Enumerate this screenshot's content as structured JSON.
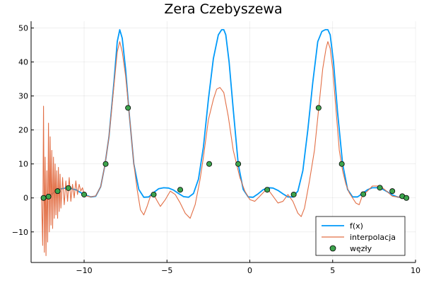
{
  "chart_data": {
    "type": "line",
    "title": "Zera Czebyszewa",
    "xlabel": "",
    "ylabel": "",
    "xlim": [
      -13.2,
      10.0
    ],
    "ylim": [
      -19,
      52
    ],
    "grid": true,
    "legend_position": "bottom-right",
    "x_ticks": [
      -10,
      -5,
      0,
      5,
      10
    ],
    "x_tick_labels": [
      "−10",
      "−5",
      "0",
      "5",
      "10"
    ],
    "y_ticks": [
      -10,
      0,
      10,
      20,
      30,
      40,
      50
    ],
    "y_tick_labels": [
      "−10",
      "0",
      "10",
      "20",
      "30",
      "40",
      "50"
    ],
    "series": [
      {
        "name": "f(x)",
        "kind": "line",
        "color": "#009af9",
        "x": [
          -12.57,
          -12.0,
          -11.5,
          -11.0,
          -10.5,
          -10.0,
          -9.6,
          -9.3,
          -9.0,
          -8.75,
          -8.5,
          -8.2,
          -8.0,
          -7.85,
          -7.7,
          -7.5,
          -7.3,
          -7.0,
          -6.7,
          -6.4,
          -6.1,
          -5.8,
          -5.5,
          -5.2,
          -4.9,
          -4.6,
          -4.3,
          -4.0,
          -3.7,
          -3.4,
          -3.1,
          -2.8,
          -2.5,
          -2.2,
          -1.9,
          -1.7,
          -1.57,
          -1.45,
          -1.25,
          -1.0,
          -0.7,
          -0.4,
          -0.1,
          0.2,
          0.5,
          0.8,
          1.1,
          1.4,
          1.7,
          2.0,
          2.3,
          2.6,
          2.9,
          3.2,
          3.5,
          3.8,
          4.1,
          4.35,
          4.55,
          4.71,
          4.85,
          5.05,
          5.3,
          5.6,
          5.9,
          6.2,
          6.5,
          6.8,
          7.1,
          7.4,
          7.7,
          8.0,
          8.3,
          8.6,
          8.9,
          9.2,
          9.42
        ],
        "y": [
          0.1,
          1.0,
          2.6,
          3.0,
          2.4,
          1.0,
          0.3,
          0.5,
          3.3,
          9.5,
          18,
          34,
          46,
          49.5,
          47,
          38,
          26,
          10,
          2.5,
          0.2,
          0.3,
          1.6,
          2.7,
          3.0,
          2.9,
          2.3,
          1.3,
          0.4,
          0.2,
          1.3,
          5.5,
          15,
          29,
          41,
          48,
          49.5,
          49.5,
          48,
          40,
          26,
          10,
          2.5,
          0.3,
          0.2,
          1.2,
          2.4,
          3.0,
          2.9,
          2.2,
          1.2,
          0.3,
          0.3,
          2.0,
          8.0,
          20,
          34,
          46,
          49.0,
          49.5,
          49.5,
          48,
          40,
          25,
          10,
          2.5,
          0.3,
          0.3,
          1.3,
          2.4,
          3.0,
          3.0,
          2.6,
          1.8,
          0.9,
          0.3,
          0.1,
          0.1
        ]
      },
      {
        "name": "interpolacja",
        "kind": "line",
        "color": "#e26f46",
        "x": [
          -12.57,
          -12.5,
          -12.45,
          -12.4,
          -12.35,
          -12.3,
          -12.25,
          -12.2,
          -12.15,
          -12.1,
          -12.05,
          -12.0,
          -11.95,
          -11.9,
          -11.85,
          -11.8,
          -11.75,
          -11.7,
          -11.65,
          -11.6,
          -11.55,
          -11.5,
          -11.45,
          -11.4,
          -11.3,
          -11.2,
          -11.1,
          -11.0,
          -10.9,
          -10.8,
          -10.7,
          -10.6,
          -10.5,
          -10.4,
          -10.3,
          -10.2,
          -10.1,
          -10.0,
          -9.8,
          -9.6,
          -9.3,
          -9.0,
          -8.75,
          -8.5,
          -8.2,
          -8.0,
          -7.85,
          -7.7,
          -7.5,
          -7.3,
          -7.0,
          -6.8,
          -6.6,
          -6.4,
          -6.2,
          -6.0,
          -5.8,
          -5.6,
          -5.4,
          -5.1,
          -4.8,
          -4.5,
          -4.2,
          -3.9,
          -3.6,
          -3.3,
          -3.0,
          -2.8,
          -2.5,
          -2.2,
          -2.0,
          -1.8,
          -1.57,
          -1.3,
          -1.0,
          -0.8,
          -0.6,
          -0.3,
          0.0,
          0.3,
          0.6,
          0.9,
          1.1,
          1.4,
          1.7,
          2.0,
          2.3,
          2.6,
          2.9,
          3.1,
          3.3,
          3.6,
          3.9,
          4.15,
          4.4,
          4.6,
          4.71,
          4.85,
          5.0,
          5.2,
          5.4,
          5.6,
          5.8,
          6.0,
          6.2,
          6.4,
          6.6,
          6.8,
          7.1,
          7.4,
          7.7,
          8.0,
          8.3,
          8.6,
          8.9,
          9.2,
          9.42
        ],
        "y": [
          0.0,
          -14,
          27,
          -16,
          12,
          -17,
          8,
          -13,
          22,
          -10,
          18,
          -8,
          14,
          -9,
          12,
          -6,
          10,
          -5,
          8,
          -6,
          9,
          -4,
          7,
          -3,
          6,
          -2,
          5,
          -1,
          6,
          -1,
          4,
          0,
          5,
          1,
          4,
          2,
          3,
          1.0,
          0.5,
          0.3,
          0.6,
          3.3,
          9.5,
          18,
          33,
          43,
          46,
          43,
          36,
          26,
          10,
          2.5,
          -3.5,
          -5.0,
          -2.5,
          0.5,
          1.0,
          -0.8,
          -2.5,
          -0.5,
          2.0,
          1.0,
          -1.5,
          -4.5,
          -6.0,
          -2.0,
          5.5,
          12,
          23,
          29,
          32,
          32.5,
          31,
          24,
          14,
          10,
          6,
          2.0,
          -0.5,
          -1.0,
          0.5,
          2.0,
          2.5,
          0.5,
          -1.5,
          -1.0,
          1.0,
          -1.0,
          -4.5,
          -5.5,
          -3.0,
          5.0,
          14,
          26,
          38,
          44,
          46,
          44,
          38,
          26,
          14,
          8,
          4,
          1.5,
          0.0,
          -1.5,
          -2.0,
          0.8,
          2.0,
          3.5,
          3.5,
          3.0,
          1.8,
          0.5,
          0.3,
          0.1,
          0.0
        ]
      },
      {
        "name": "węzły",
        "kind": "scatter",
        "color": "#3da44d",
        "x": [
          -12.45,
          -12.15,
          -11.6,
          -10.95,
          -10.0,
          -8.7,
          -7.35,
          -5.8,
          -4.2,
          -2.45,
          -0.7,
          1.05,
          2.65,
          4.15,
          5.55,
          6.85,
          7.85,
          8.6,
          9.2,
          9.45
        ],
        "y": [
          0.0,
          0.4,
          2.0,
          2.9,
          1.0,
          10,
          26.5,
          1.0,
          2.4,
          10,
          10,
          2.4,
          1.0,
          26.5,
          10,
          1.1,
          3.0,
          2.0,
          0.5,
          0.0
        ]
      }
    ]
  }
}
